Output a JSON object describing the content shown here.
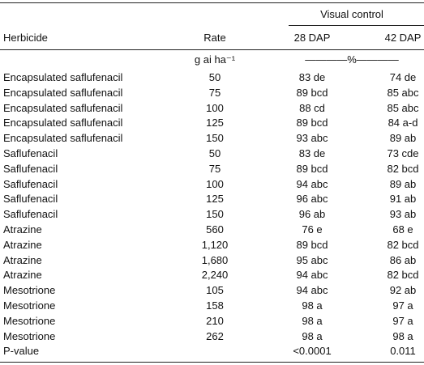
{
  "table": {
    "spanner": "Visual control",
    "columns": [
      "Herbicide",
      "Rate",
      "28 DAP",
      "42 DAP"
    ],
    "units": [
      "g ai ha⁻¹",
      "————%————"
    ],
    "rows": [
      [
        "Encapsulated saflufenacil",
        "50",
        "83 de",
        "74 de"
      ],
      [
        "Encapsulated saflufenacil",
        "75",
        "89 bcd",
        "85 abc"
      ],
      [
        "Encapsulated saflufenacil",
        "100",
        "88 cd",
        "85 abc"
      ],
      [
        "Encapsulated saflufenacil",
        "125",
        "89 bcd",
        "84 a-d"
      ],
      [
        "Encapsulated saflufenacil",
        "150",
        "93 abc",
        "89 ab"
      ],
      [
        "Saflufenacil",
        "50",
        "83 de",
        "73 cde"
      ],
      [
        "Saflufenacil",
        "75",
        "89 bcd",
        "82 bcd"
      ],
      [
        "Saflufenacil",
        "100",
        "94 abc",
        "89 ab"
      ],
      [
        "Saflufenacil",
        "125",
        "96 abc",
        "91 ab"
      ],
      [
        "Saflufenacil",
        "150",
        "96 ab",
        "93 ab"
      ],
      [
        "Atrazine",
        "560",
        "76 e",
        "68 e"
      ],
      [
        "Atrazine",
        "1,120",
        "89 bcd",
        "82 bcd"
      ],
      [
        "Atrazine",
        "1,680",
        "95 abc",
        "86 ab"
      ],
      [
        "Atrazine",
        "2,240",
        "94 abc",
        "82 bcd"
      ],
      [
        "Mesotrione",
        "105",
        "94 abc",
        "92 ab"
      ],
      [
        "Mesotrione",
        "158",
        "98 a",
        "97 a"
      ],
      [
        "Mesotrione",
        "210",
        "98 a",
        "97 a"
      ],
      [
        "Mesotrione",
        "262",
        "98 a",
        "98 a"
      ]
    ],
    "pvalue": [
      "P-value",
      "<0.0001",
      "0.011"
    ]
  }
}
